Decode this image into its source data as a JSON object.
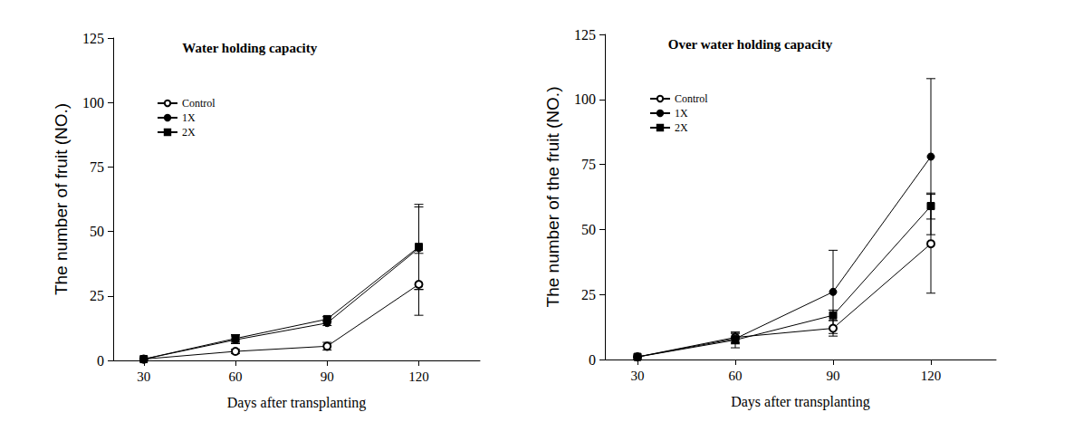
{
  "chart_data": [
    {
      "type": "line",
      "title": "Water holding capacity",
      "x_label": "Days after transplanting",
      "y_label": "The number of fruit (NO.)",
      "x": [
        30,
        60,
        90,
        120
      ],
      "xlim": [
        20,
        140
      ],
      "xticks": [
        30,
        60,
        90,
        120
      ],
      "ylim": [
        0,
        125
      ],
      "yticks": [
        0,
        25,
        50,
        75,
        100,
        125
      ],
      "legend": "upper left",
      "series": [
        {
          "name": "Control",
          "color": "#000000",
          "marker": "open circle",
          "values": [
            0.5,
            3.5,
            5.5,
            29.5
          ],
          "errors": [
            0,
            0.8,
            1.5,
            12
          ]
        },
        {
          "name": "1X",
          "color": "#000000",
          "marker": "circle",
          "values": [
            0.5,
            8,
            14.5,
            43.5
          ],
          "errors": [
            0,
            1.5,
            1,
            16
          ]
        },
        {
          "name": "2X",
          "color": "#000000",
          "marker": "square",
          "values": [
            0.5,
            8.5,
            16,
            44
          ],
          "errors": [
            0,
            1.5,
            1,
            16.5
          ]
        }
      ]
    },
    {
      "type": "line",
      "title": "Over water holding capacity",
      "x_label": "Days after transplanting",
      "y_label": "The number of the fruit (NO.)",
      "x": [
        30,
        60,
        90,
        120
      ],
      "xlim": [
        20,
        140
      ],
      "xticks": [
        30,
        60,
        90,
        120
      ],
      "ylim": [
        0,
        125
      ],
      "yticks": [
        0,
        25,
        50,
        75,
        100,
        125
      ],
      "legend": "upper left",
      "series": [
        {
          "name": "Control",
          "color": "#000000",
          "marker": "open circle",
          "values": [
            1,
            8.5,
            12,
            44.5
          ],
          "errors": [
            0,
            2,
            3,
            19
          ]
        },
        {
          "name": "1X",
          "color": "#000000",
          "marker": "circle",
          "values": [
            1,
            8,
            26,
            78
          ],
          "errors": [
            0,
            2,
            16,
            30
          ]
        },
        {
          "name": "2X",
          "color": "#000000",
          "marker": "square",
          "values": [
            1,
            7.5,
            17,
            59
          ],
          "errors": [
            0,
            3,
            2,
            5
          ]
        }
      ]
    }
  ]
}
